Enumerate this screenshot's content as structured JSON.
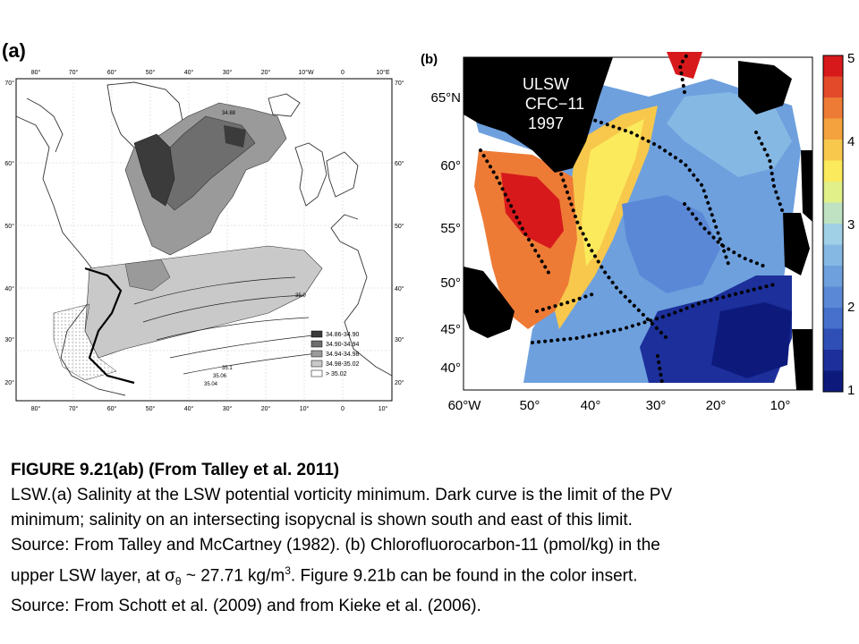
{
  "panel_a": {
    "label": "(a)",
    "top_lon_ticks": [
      "80°",
      "70°",
      "60°",
      "50°",
      "40°",
      "30°",
      "20°",
      "10°W",
      "0",
      "10°E"
    ],
    "bottom_lon_ticks": [
      "80°",
      "70°",
      "60°",
      "50°",
      "40°",
      "30°",
      "20°",
      "10°",
      "0",
      "10°"
    ],
    "left_lat_ticks": [
      "70°",
      "60°",
      "50°",
      "40°",
      "30°",
      "20°"
    ],
    "right_lat_ticks": [
      "70°",
      "60°",
      "50°",
      "40°",
      "30°",
      "20°"
    ],
    "contour_labels": [
      "34.88",
      "35.0",
      "35.1",
      "35.06",
      "35.04"
    ],
    "legend": [
      {
        "range": "34.86-34.90",
        "color": "#3b3b3b"
      },
      {
        "range": "34.90-34.94",
        "color": "#6e6e6e"
      },
      {
        "range": "34.94-34.98",
        "color": "#9a9a9a"
      },
      {
        "range": "34.98-35.02",
        "color": "#c9c9c9"
      },
      {
        "range": "> 35.02",
        "color": "#ffffff"
      }
    ]
  },
  "panel_b": {
    "label": "(b)",
    "annotation": [
      "ULSW",
      "CFC−11",
      "1997"
    ],
    "lat_ticks": [
      "65°N",
      "60°",
      "55°",
      "50°",
      "45°",
      "40°"
    ],
    "lon_ticks": [
      "60°W",
      "50°",
      "40°",
      "30°",
      "20°",
      "10°"
    ],
    "colorbar_ticks": [
      "5",
      "4",
      "3",
      "2",
      "1"
    ],
    "colorbar_colors": [
      "#d7191c",
      "#e24a2a",
      "#ed7b36",
      "#f3a23e",
      "#f7c84c",
      "#fbea5c",
      "#e2f08a",
      "#bfe3c2",
      "#9fd0e6",
      "#86b8e4",
      "#6ea0de",
      "#5a88d6",
      "#4670cc",
      "#2f4fb6",
      "#1c2f9a",
      "#0d1a7c"
    ]
  },
  "caption": {
    "title": "FIGURE 9.21(ab) (From Talley et al. 2011)",
    "line1": "LSW.(a) Salinity at the LSW potential vorticity minimum. Dark curve is the limit of the PV",
    "line2": "minimum; salinity on an intersecting isopycnal is shown south and east of this limit.",
    "line3": "Source: From Talley and McCartney (1982). (b) Chlorofluorocarbon-11  (pmol/kg) in the",
    "line4_pre": "upper LSW layer, at σ",
    "line4_sub": "θ",
    "line4_mid": " ~ 27.71 kg/m",
    "line4_sup": "3",
    "line4_post": ". Figure 9.21b can be found in the color insert.",
    "line5": "Source: From Schott et al. (2009) and from Kieke et al. (2006)."
  }
}
